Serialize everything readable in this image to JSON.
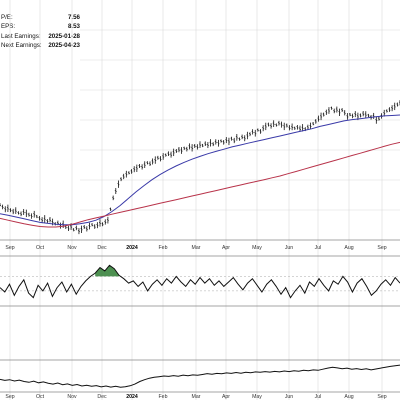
{
  "stats": [
    {
      "label": "P/E:",
      "value": "7.56"
    },
    {
      "label": "EPS:",
      "value": "8.53"
    },
    {
      "label": "Last Earnings:",
      "value": "2025-01-28"
    },
    {
      "label": "Next Earnings:",
      "value": "2025-04-23"
    }
  ],
  "colors": {
    "price": "#111111",
    "ma_short": "#3a3aa8",
    "ma_long": "#b8334a",
    "grid": "#d9d9d9",
    "indicator_fill": "#2e7d32",
    "year_label": "#000000"
  },
  "chart_data": [
    {
      "type": "line",
      "panel": "price",
      "ticks": [
        "Sep",
        "Oct",
        "Nov",
        "Dec",
        "2024",
        "Feb",
        "Mar",
        "Apr",
        "May",
        "Jun",
        "Jul",
        "Aug",
        "Sep"
      ],
      "series": [
        {
          "style": "ohlc-bars",
          "values": [
            0,
            -0.5,
            -1,
            -0.8,
            -1.2,
            -1.5,
            -1.3,
            -1.8,
            -2,
            -1.6,
            -1.9,
            -2.2,
            -2.5,
            -2.1,
            -2.6,
            -3,
            -3.4,
            -3.1,
            -3.6,
            -3.3,
            -3.8,
            -4.2,
            -4,
            -4.6,
            -4.3,
            -4.9,
            -5.2,
            -4.8,
            -5.5,
            -5.1,
            -5.8,
            -5.4,
            -4.9,
            -5.3,
            -4.7,
            -4.4,
            -4.8,
            -4.5,
            -4,
            -4.3,
            -3.8,
            -3.4,
            -1,
            1.5,
            3,
            4.5,
            5.6,
            6.2,
            6.7,
            7,
            7.3,
            7.8,
            8,
            8.5,
            8.3,
            8.8,
            9.2,
            9,
            9.5,
            9.8,
            10.3,
            10.1,
            10.6,
            10.9,
            11.2,
            11,
            11.5,
            11.8,
            12.1,
            11.9,
            12.4,
            12.2,
            12.8,
            12.5,
            12.9,
            12.7,
            13.2,
            13,
            13.4,
            13.1,
            13.6,
            13.3,
            13.8,
            13.5,
            14,
            13.7,
            14.2,
            13.9,
            14.5,
            14.1,
            14.8,
            14.4,
            14.9,
            14.6,
            15.2,
            15.5,
            16,
            15.7,
            16.4,
            16.1,
            16.8,
            17.2,
            17.6,
            17.3,
            17.8,
            17.5,
            17.9,
            17.6,
            17.2,
            17.4,
            16.9,
            17.1,
            16.8,
            17,
            16.7,
            16.9,
            16.6,
            17,
            17.3,
            17.8,
            18.3,
            18.9,
            19.4,
            19.8,
            20.3,
            20.7,
            21.2,
            20.6,
            20.9,
            20.3,
            20.8,
            20.2,
            19.4,
            19.8,
            19.5,
            19.9,
            19.4,
            19.6,
            20,
            19.8,
            19.6,
            19.2,
            19.5,
            18.6,
            18.9,
            19.5,
            20.1,
            20.6,
            20.9,
            21.2,
            21.6,
            22,
            22.4
          ]
        },
        {
          "name": "",
          "style": "ma-short",
          "values": [
            -2,
            -2.3,
            -2.7,
            -3.1,
            -3.5,
            -3.9,
            -4.1,
            -4.3,
            -4.4,
            -4.4,
            -4.2,
            -3.9,
            -3.4,
            -2.6,
            -1.5,
            -0.2,
            1.3,
            2.8,
            4.2,
            5.5,
            6.6,
            7.6,
            8.5,
            9.3,
            10,
            10.6,
            11.2,
            11.7,
            12.2,
            12.7,
            13.1,
            13.5,
            13.9,
            14.3,
            14.7,
            15.1,
            15.5,
            15.9,
            16.3,
            16.7,
            17.2,
            17.6,
            18,
            18.4,
            18.7,
            18.9,
            19.1,
            19.3,
            19.5,
            19.6,
            19.7
          ]
        },
        {
          "name": "",
          "style": "ma-long",
          "values": [
            -3,
            -3.4,
            -3.8,
            -4.2,
            -4.5,
            -4.8,
            -4.9,
            -4.9,
            -4.7,
            -4.3,
            -3.8,
            -3.3,
            -2.9,
            -2.5,
            -2.1,
            -1.7,
            -1.3,
            -0.9,
            -0.5,
            -0.1,
            0.3,
            0.7,
            1.1,
            1.5,
            1.9,
            2.3,
            2.7,
            3.1,
            3.5,
            3.9,
            4.3,
            4.7,
            5.1,
            5.5,
            5.9,
            6.3,
            6.8,
            7.3,
            7.8,
            8.3,
            8.8,
            9.3,
            9.8,
            10.3,
            10.8,
            11.3,
            11.8,
            12.3,
            12.8,
            13.3,
            13.7
          ]
        }
      ]
    },
    {
      "type": "area",
      "panel": "indicator",
      "series": [
        {
          "values": [
            0.1,
            -0.3,
            0.4,
            -0.6,
            0.2,
            0.8,
            -0.4,
            -0.8,
            0.3,
            -0.2,
            0.5,
            -0.7,
            0.1,
            0.6,
            -0.3,
            0.4,
            -0.5,
            0.2,
            0.7,
            1.1,
            1.4,
            1.9,
            1.6,
            2.1,
            1.8,
            1.2,
            0.9,
            0.5,
            0.7,
            0.2,
            0.6,
            -0.2,
            0.4,
            0.8,
            0.3,
            0.9,
            0.5,
            1.1,
            0.6,
            0.2,
            0.8,
            0.4,
            1,
            0.5,
            0.9,
            0.3,
            0.7,
            0.2,
            0.6,
            1,
            0.4,
            -0.1,
            0.5,
            0.9,
            0.3,
            -0.3,
            0.4,
            0.8,
            0.2,
            -0.5,
            0.1,
            -0.8,
            -0.2,
            0.3,
            -0.4,
            0.6,
            0.2,
            0.9,
            0.3,
            -0.2,
            0.7,
            0.4,
            1.1,
            0.6,
            -0.3,
            0.5,
            0.9,
            0.2,
            -0.6,
            -0.2,
            0.4,
            0.8,
            0.3,
            1,
            0.5
          ]
        }
      ]
    },
    {
      "type": "line",
      "panel": "lower",
      "ticks": [
        "Sep",
        "Oct",
        "Nov",
        "Dec",
        "2024",
        "Feb",
        "Mar",
        "Apr",
        "May",
        "Jun",
        "Jul",
        "Aug",
        "Sep"
      ],
      "series": [
        {
          "values": [
            4,
            3.5,
            3.8,
            3.2,
            3.6,
            3,
            2.6,
            3.1,
            2.4,
            2.8,
            2.2,
            1.8,
            2.3,
            1.5,
            1.9,
            1.2,
            1.6,
            0.9,
            1.3,
            0.8,
            1.1,
            0.5,
            0.9,
            0.4,
            0.8,
            0.3,
            0.6,
            1,
            1.8,
            3,
            3.8,
            4.5,
            4.9,
            5.2,
            5.5,
            5.3,
            5.7,
            5.4,
            5.9,
            5.6,
            6,
            5.8,
            6.2,
            6.6,
            6.3,
            6.7,
            6.5,
            6.9,
            6.7,
            7.1,
            6.8,
            7.2,
            7,
            7.4,
            7.2,
            7.5,
            7.3,
            7.6,
            7.4,
            7.8,
            7.5,
            7.9,
            7.7,
            8.1,
            7.9,
            8.3,
            8.1,
            8.6,
            9.1,
            9.5,
            9.2,
            8.8,
            9.1,
            8.6,
            8.9,
            8.5,
            8.8,
            8.3,
            8.7,
            9.1,
            9.5,
            9.9,
            10.2,
            10.5
          ]
        }
      ]
    }
  ]
}
